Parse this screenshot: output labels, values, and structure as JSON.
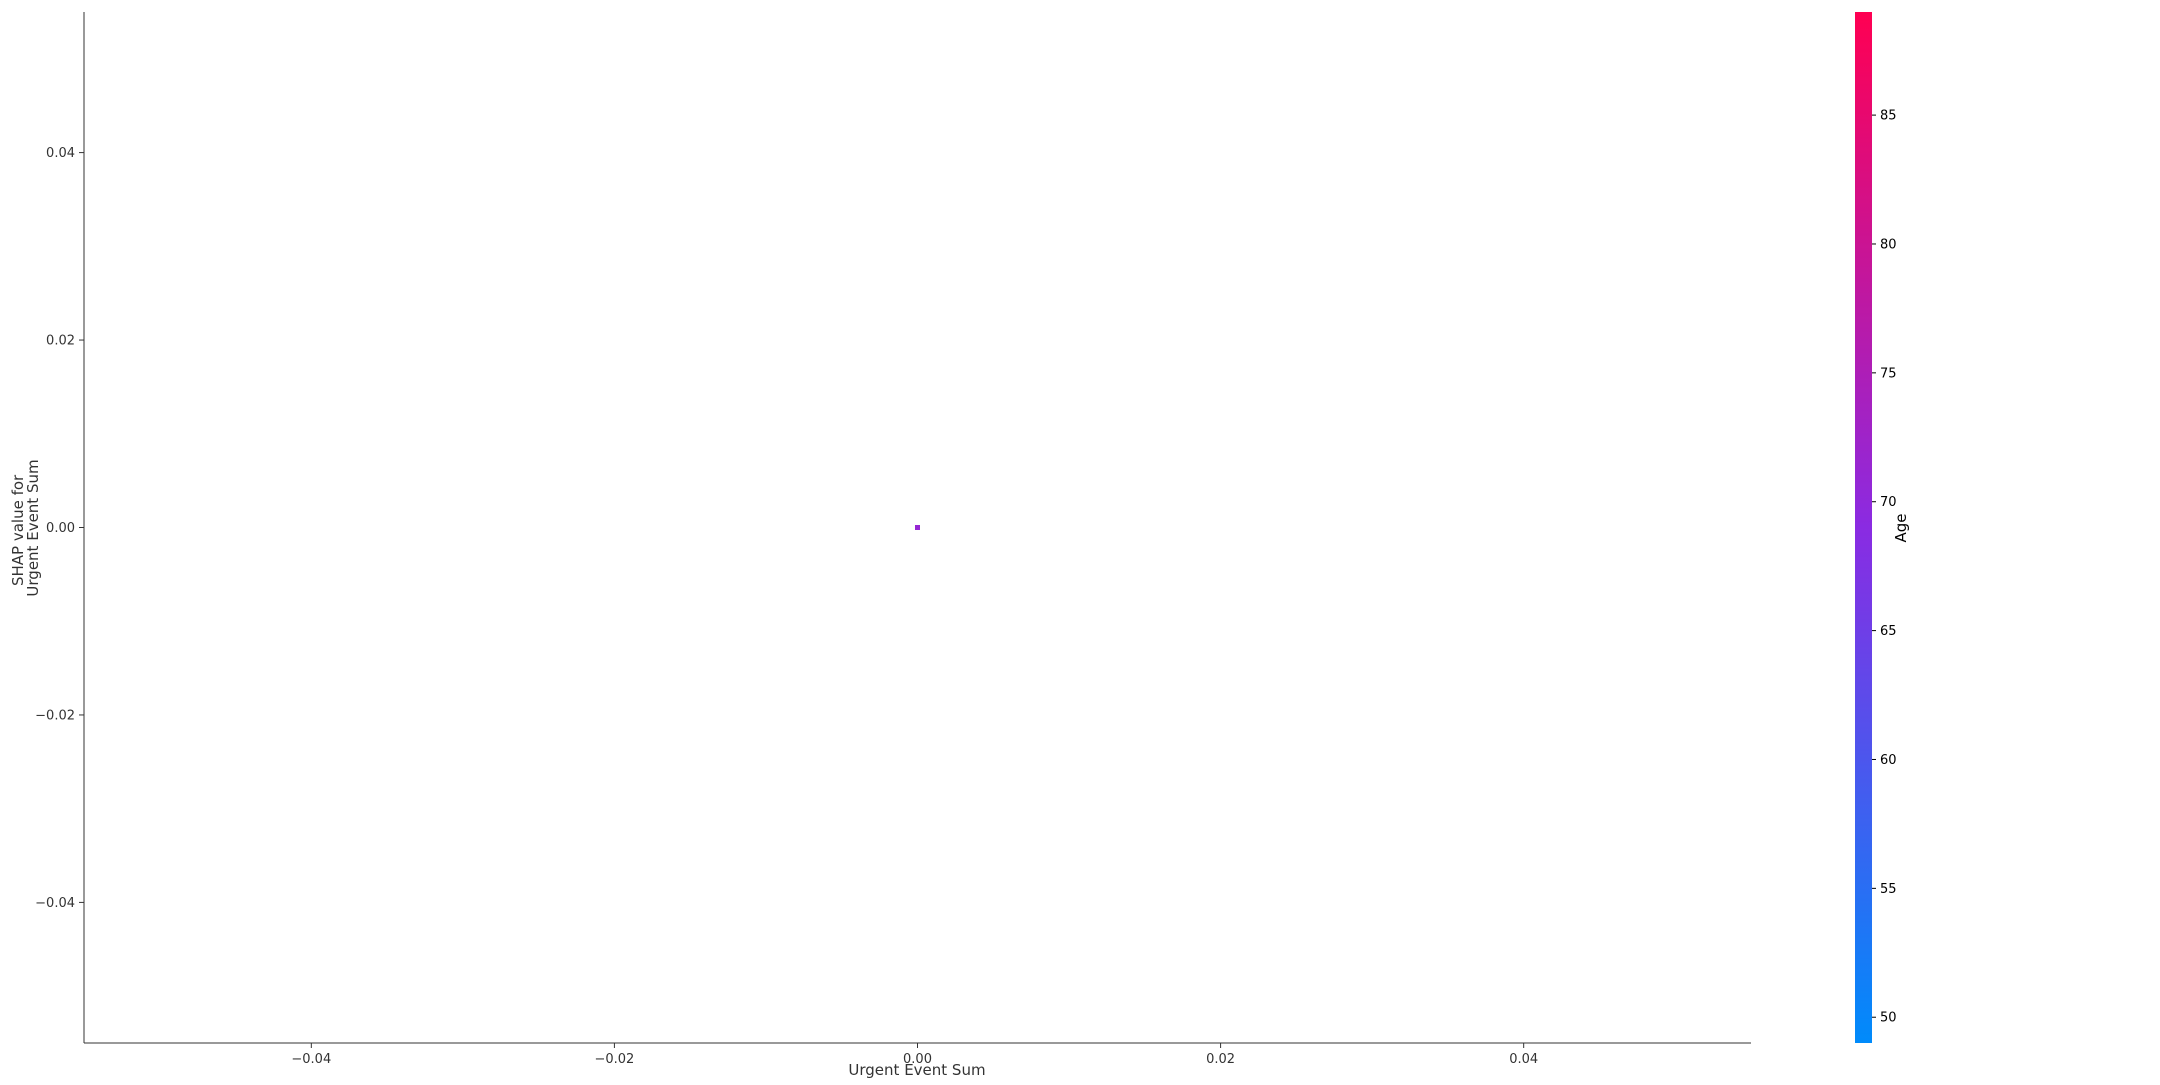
{
  "chart_data": {
    "type": "scatter",
    "xlabel": "Urgent Event Sum",
    "ylabel": [
      "SHAP value for",
      "Urgent Event Sum"
    ],
    "xlim": [
      -0.055,
      0.055
    ],
    "ylim": [
      -0.055,
      0.055
    ],
    "xticks": [
      -0.04,
      -0.02,
      0.0,
      0.02,
      0.04
    ],
    "yticks": [
      -0.04,
      -0.02,
      0.0,
      0.02,
      0.04
    ],
    "xtick_labels": [
      "−0.04",
      "−0.02",
      "0.00",
      "0.02",
      "0.04"
    ],
    "ytick_labels": [
      "−0.04",
      "−0.02",
      "0.00",
      "0.02",
      "0.04"
    ],
    "points": [
      {
        "x": 0.0,
        "y": 0.0,
        "color_value": 71
      }
    ],
    "colorbar": {
      "label": "Age",
      "range": [
        49,
        89
      ],
      "ticks": [
        50,
        55,
        60,
        65,
        70,
        75,
        80,
        85
      ],
      "colors": [
        "#008bfb",
        "#8a2be2",
        "#ff0052"
      ]
    },
    "grid": false,
    "legend": "none"
  }
}
